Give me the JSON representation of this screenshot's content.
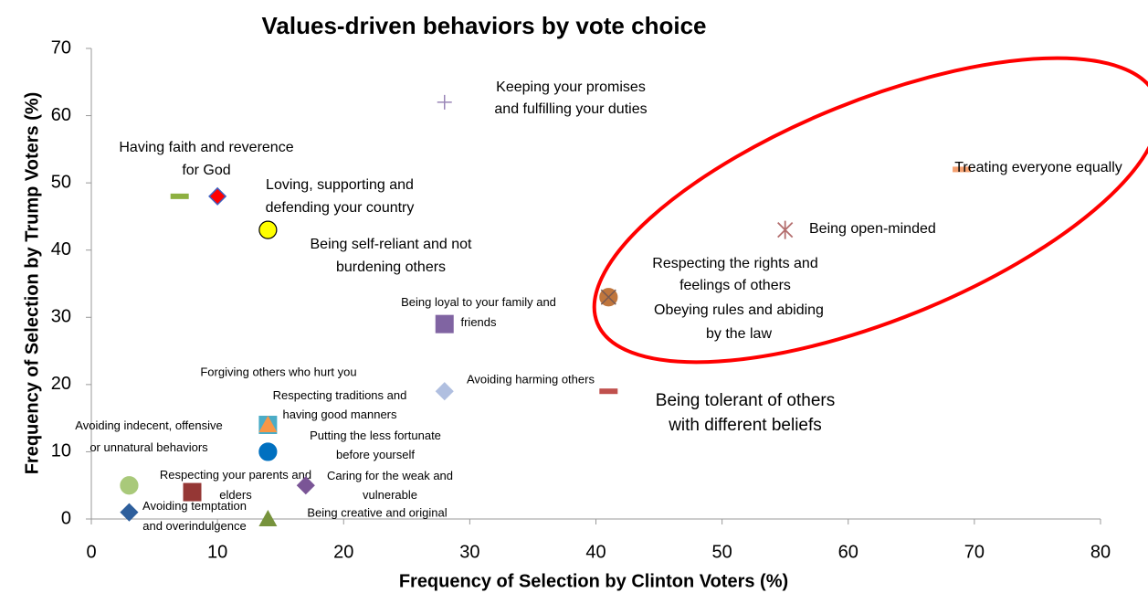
{
  "chart_data": {
    "type": "scatter",
    "title": "Values-driven behaviors by vote choice",
    "xlabel": "Frequency of Selection by Clinton Voters (%)",
    "ylabel": "Frequency of Selection by Trump Voters (%)",
    "xlim": [
      0,
      80
    ],
    "xticks": [
      0,
      10,
      20,
      30,
      40,
      50,
      60,
      70,
      80
    ],
    "ylim": [
      0,
      70
    ],
    "yticks": [
      0,
      10,
      20,
      30,
      40,
      50,
      60,
      70
    ],
    "grid": false,
    "series": [
      {
        "name": "Keeping your promises and fulfilling your duties",
        "color": "#9a86b8",
        "marker": "plus",
        "x": [
          28
        ],
        "values": [
          62
        ]
      },
      {
        "name": "Having faith and reverence for God",
        "color": "#8db040",
        "marker": "dash",
        "x": [
          7
        ],
        "values": [
          48
        ]
      },
      {
        "name": "Loving, supporting and defending your country",
        "color": "#ff0000",
        "marker": "diamond",
        "x": [
          10
        ],
        "values": [
          48
        ]
      },
      {
        "name": "Being self-reliant and not burdening others",
        "color": "#ffff00",
        "marker": "circle",
        "x": [
          14
        ],
        "values": [
          43
        ]
      },
      {
        "name": "Being loyal to your family and friends",
        "color": "#8064a2",
        "marker": "square",
        "x": [
          28
        ],
        "values": [
          29
        ]
      },
      {
        "name": "Treating everyone equally",
        "color": "#f4a070",
        "marker": "dash",
        "x": [
          69
        ],
        "values": [
          52
        ]
      },
      {
        "name": "Being open-minded",
        "color": "#b46e6e",
        "marker": "asterisk",
        "x": [
          55
        ],
        "values": [
          43
        ]
      },
      {
        "name": "Respecting the rights and feelings of others",
        "color": "#c0763d",
        "marker": "circle",
        "x": [
          41
        ],
        "values": [
          33
        ]
      },
      {
        "name": "Obeying rules and abiding by the law",
        "color": "#7a5a50",
        "marker": "x",
        "x": [
          41
        ],
        "values": [
          33
        ]
      },
      {
        "name": "Avoiding harming others",
        "color": "#b0bfe0",
        "marker": "diamond",
        "x": [
          28
        ],
        "values": [
          19
        ]
      },
      {
        "name": "Being tolerant of others with different beliefs",
        "color": "#c0504d",
        "marker": "dash",
        "x": [
          41
        ],
        "values": [
          19
        ]
      },
      {
        "name": "Forgiving others who hurt you",
        "color": "#4bacc6",
        "marker": "square",
        "x": [
          14
        ],
        "values": [
          14
        ]
      },
      {
        "name": "Respecting traditions and having good manners",
        "color": "#f79646",
        "marker": "triangle",
        "x": [
          14
        ],
        "values": [
          14
        ]
      },
      {
        "name": "Avoiding indecent, offensive or unnatural behaviors",
        "color": "#a9c97a",
        "marker": "circle",
        "x": [
          3
        ],
        "values": [
          5
        ]
      },
      {
        "name": "Putting the less fortunate before yourself",
        "color": "#0070c0",
        "marker": "circle",
        "x": [
          14
        ],
        "values": [
          10
        ]
      },
      {
        "name": "Respecting your parents and elders",
        "color": "#953735",
        "marker": "square",
        "x": [
          8
        ],
        "values": [
          4
        ]
      },
      {
        "name": "Caring for the weak and vulnerable",
        "color": "#7a5596",
        "marker": "diamond",
        "x": [
          17
        ],
        "values": [
          5
        ]
      },
      {
        "name": "Avoiding temptation and overindulgence",
        "color": "#2e5f9c",
        "marker": "diamond",
        "x": [
          3
        ],
        "values": [
          1
        ]
      },
      {
        "name": "Being creative and original",
        "color": "#77933c",
        "marker": "triangle",
        "x": [
          14
        ],
        "values": [
          0
        ]
      }
    ]
  }
}
